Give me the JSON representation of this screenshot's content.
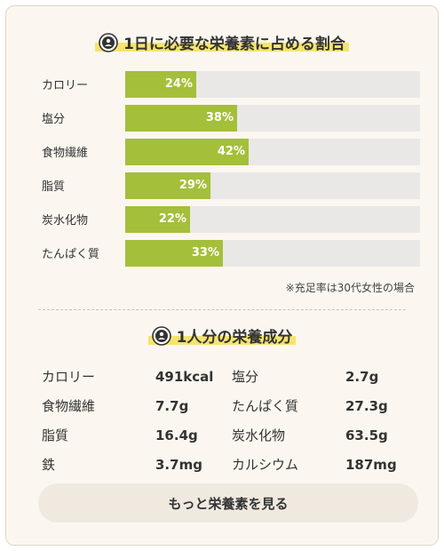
{
  "section1": {
    "title": "1日に必要な栄養素に占める割合",
    "icon": "person-badge-icon",
    "note": "※充足率は30代女性の場合"
  },
  "chart_data": {
    "type": "bar",
    "orientation": "horizontal",
    "categories": [
      "カロリー",
      "塩分",
      "食物繊維",
      "脂質",
      "炭水化物",
      "たんぱく質"
    ],
    "values": [
      24,
      38,
      42,
      29,
      22,
      33
    ],
    "value_labels": [
      "24%",
      "38%",
      "42%",
      "29%",
      "22%",
      "33%"
    ],
    "xlim": [
      0,
      100
    ],
    "unit": "%",
    "bar_color": "#a4bf3a",
    "track_color": "#e9e8e6",
    "grid": false
  },
  "section2": {
    "title": "1人分の栄養成分",
    "icon": "person-badge-icon",
    "rows": [
      {
        "name1": "カロリー",
        "val1": "491kcal",
        "name2": "塩分",
        "val2": "2.7g"
      },
      {
        "name1": "食物繊維",
        "val1": "7.7g",
        "name2": "たんぱく質",
        "val2": "27.3g"
      },
      {
        "name1": "脂質",
        "val1": "16.4g",
        "name2": "炭水化物",
        "val2": "63.5g"
      },
      {
        "name1": "鉄",
        "val1": "3.7mg",
        "name2": "カルシウム",
        "val2": "187mg"
      }
    ]
  },
  "more_button": {
    "label": "もっと栄養素を見る"
  },
  "colors": {
    "card_bg": "#fbf7f0",
    "highlight": "#f5e46e",
    "button_bg": "#efe9e0"
  }
}
